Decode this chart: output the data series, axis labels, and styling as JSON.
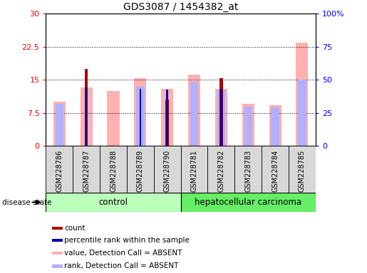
{
  "title": "GDS3087 / 1454382_at",
  "samples": [
    "GSM228786",
    "GSM228787",
    "GSM228788",
    "GSM228789",
    "GSM228790",
    "GSM228781",
    "GSM228782",
    "GSM228783",
    "GSM228784",
    "GSM228785"
  ],
  "count": [
    0,
    17.5,
    0,
    0,
    10.5,
    0,
    15.3,
    0,
    0,
    0
  ],
  "percentile_rank": [
    0,
    13.2,
    0,
    13.0,
    12.8,
    0,
    13.0,
    0,
    0,
    0
  ],
  "value_absent": [
    10.0,
    13.2,
    12.5,
    15.3,
    13.0,
    16.2,
    13.0,
    9.5,
    9.2,
    23.5
  ],
  "rank_absent": [
    9.5,
    0,
    0,
    13.5,
    0,
    14.5,
    12.8,
    9.0,
    8.8,
    15.0
  ],
  "ylim_left": [
    0,
    30
  ],
  "ylim_right": [
    0,
    100
  ],
  "yticks_left": [
    0,
    7.5,
    15,
    22.5,
    30
  ],
  "yticks_right": [
    0,
    25,
    50,
    75,
    100
  ],
  "ytick_labels_left": [
    "0",
    "7.5",
    "15",
    "22.5",
    "30"
  ],
  "ytick_labels_right": [
    "0",
    "25",
    "50",
    "75",
    "100%"
  ],
  "color_count": "#aa0000",
  "color_percentile": "#0000aa",
  "color_value_absent": "#ffb0b0",
  "color_rank_absent": "#b0b0ff",
  "color_control_bg": "#bbffbb",
  "color_cancer_bg": "#66ee66",
  "color_sample_box": "#d8d8d8",
  "group_label_control": "control",
  "group_label_cancer": "hepatocellular carcinoma",
  "n_control": 5,
  "n_cancer": 5,
  "legend_items": [
    {
      "label": "count",
      "color": "#aa0000"
    },
    {
      "label": "percentile rank within the sample",
      "color": "#0000aa"
    },
    {
      "label": "value, Detection Call = ABSENT",
      "color": "#ffb0b0"
    },
    {
      "label": "rank, Detection Call = ABSENT",
      "color": "#b0b0ff"
    }
  ]
}
